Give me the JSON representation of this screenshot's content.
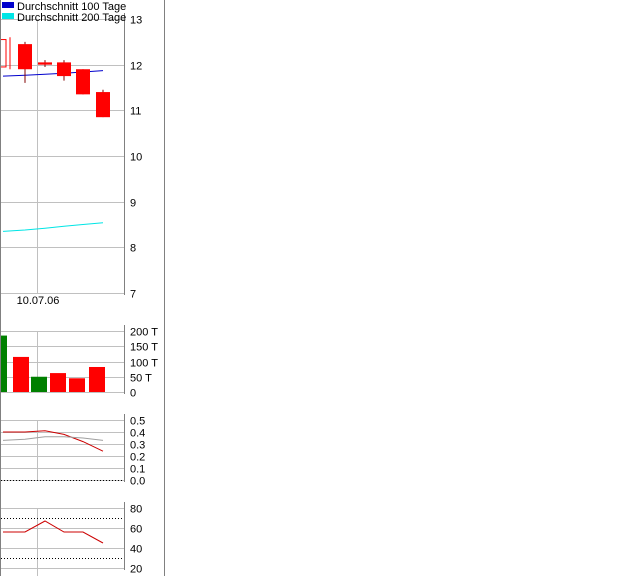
{
  "legend": [
    {
      "label": "Durchschnitt 100 Tage",
      "color": "#0000cc"
    },
    {
      "label": "Durchschnitt 200 Tage",
      "color": "#00e5e5"
    }
  ],
  "colors": {
    "up": "#008000",
    "down": "#ff0000",
    "grid": "#c0c0c0",
    "axis": "#808080",
    "signal": "#a0a0a0",
    "indicator": "#cc0000"
  },
  "chart_data": [
    {
      "type": "candlestick",
      "ylim": [
        7,
        13
      ],
      "yticks": [
        "7",
        "8",
        "9",
        "10",
        "11",
        "12",
        "13"
      ],
      "ytick_values": [
        7,
        8,
        9,
        10,
        11,
        12,
        13
      ],
      "xtick_labels": [
        "10.07.06"
      ],
      "candles": [
        {
          "open": 11.95,
          "close": 12.55,
          "high": 12.6,
          "low": 11.9,
          "partial": true
        },
        {
          "open": 12.45,
          "close": 11.9,
          "high": 12.5,
          "low": 11.6
        },
        {
          "open": 12.05,
          "close": 12.0,
          "high": 12.1,
          "low": 11.95
        },
        {
          "open": 12.05,
          "close": 11.75,
          "high": 12.1,
          "low": 11.65
        },
        {
          "open": 11.9,
          "close": 11.35,
          "high": 11.9,
          "low": 11.35
        },
        {
          "open": 11.4,
          "close": 10.85,
          "high": 11.45,
          "low": 10.85
        }
      ],
      "series": [
        {
          "name": "Durchschnitt 100 Tage",
          "values": [
            11.75,
            11.77,
            11.79,
            11.81,
            11.84,
            11.87
          ]
        },
        {
          "name": "Durchschnitt 200 Tage",
          "values": [
            8.35,
            8.38,
            8.42,
            8.46,
            8.5,
            8.54
          ]
        }
      ]
    },
    {
      "type": "bar",
      "ylim": [
        0,
        200
      ],
      "yticks": [
        "200 T",
        "150 T",
        "100 T",
        "50 T",
        "0"
      ],
      "ytick_values": [
        200,
        150,
        100,
        50,
        0
      ],
      "values": [
        185,
        115,
        50,
        62,
        45,
        82
      ],
      "direction": [
        "up",
        "down",
        "up",
        "down",
        "down",
        "down"
      ]
    },
    {
      "type": "line",
      "ylim": [
        0.0,
        0.5
      ],
      "yticks": [
        "0.5",
        "0.4",
        "0.3",
        "0.2",
        "0.1",
        "0.0"
      ],
      "ytick_values": [
        0.5,
        0.4,
        0.3,
        0.2,
        0.1,
        0.0
      ],
      "zero_line": 0.0,
      "series": [
        {
          "values": [
            0.4,
            0.4,
            0.41,
            0.38,
            0.32,
            0.24
          ]
        },
        {
          "values": [
            0.33,
            0.34,
            0.36,
            0.36,
            0.35,
            0.33
          ]
        }
      ]
    },
    {
      "type": "line",
      "ylim": [
        20,
        80
      ],
      "yticks": [
        "80",
        "60",
        "40",
        "20"
      ],
      "ytick_values": [
        80,
        60,
        40,
        20
      ],
      "reference_lines": [
        70,
        30
      ],
      "series": [
        {
          "values": [
            56,
            56,
            67,
            56,
            56,
            45
          ]
        }
      ]
    }
  ]
}
